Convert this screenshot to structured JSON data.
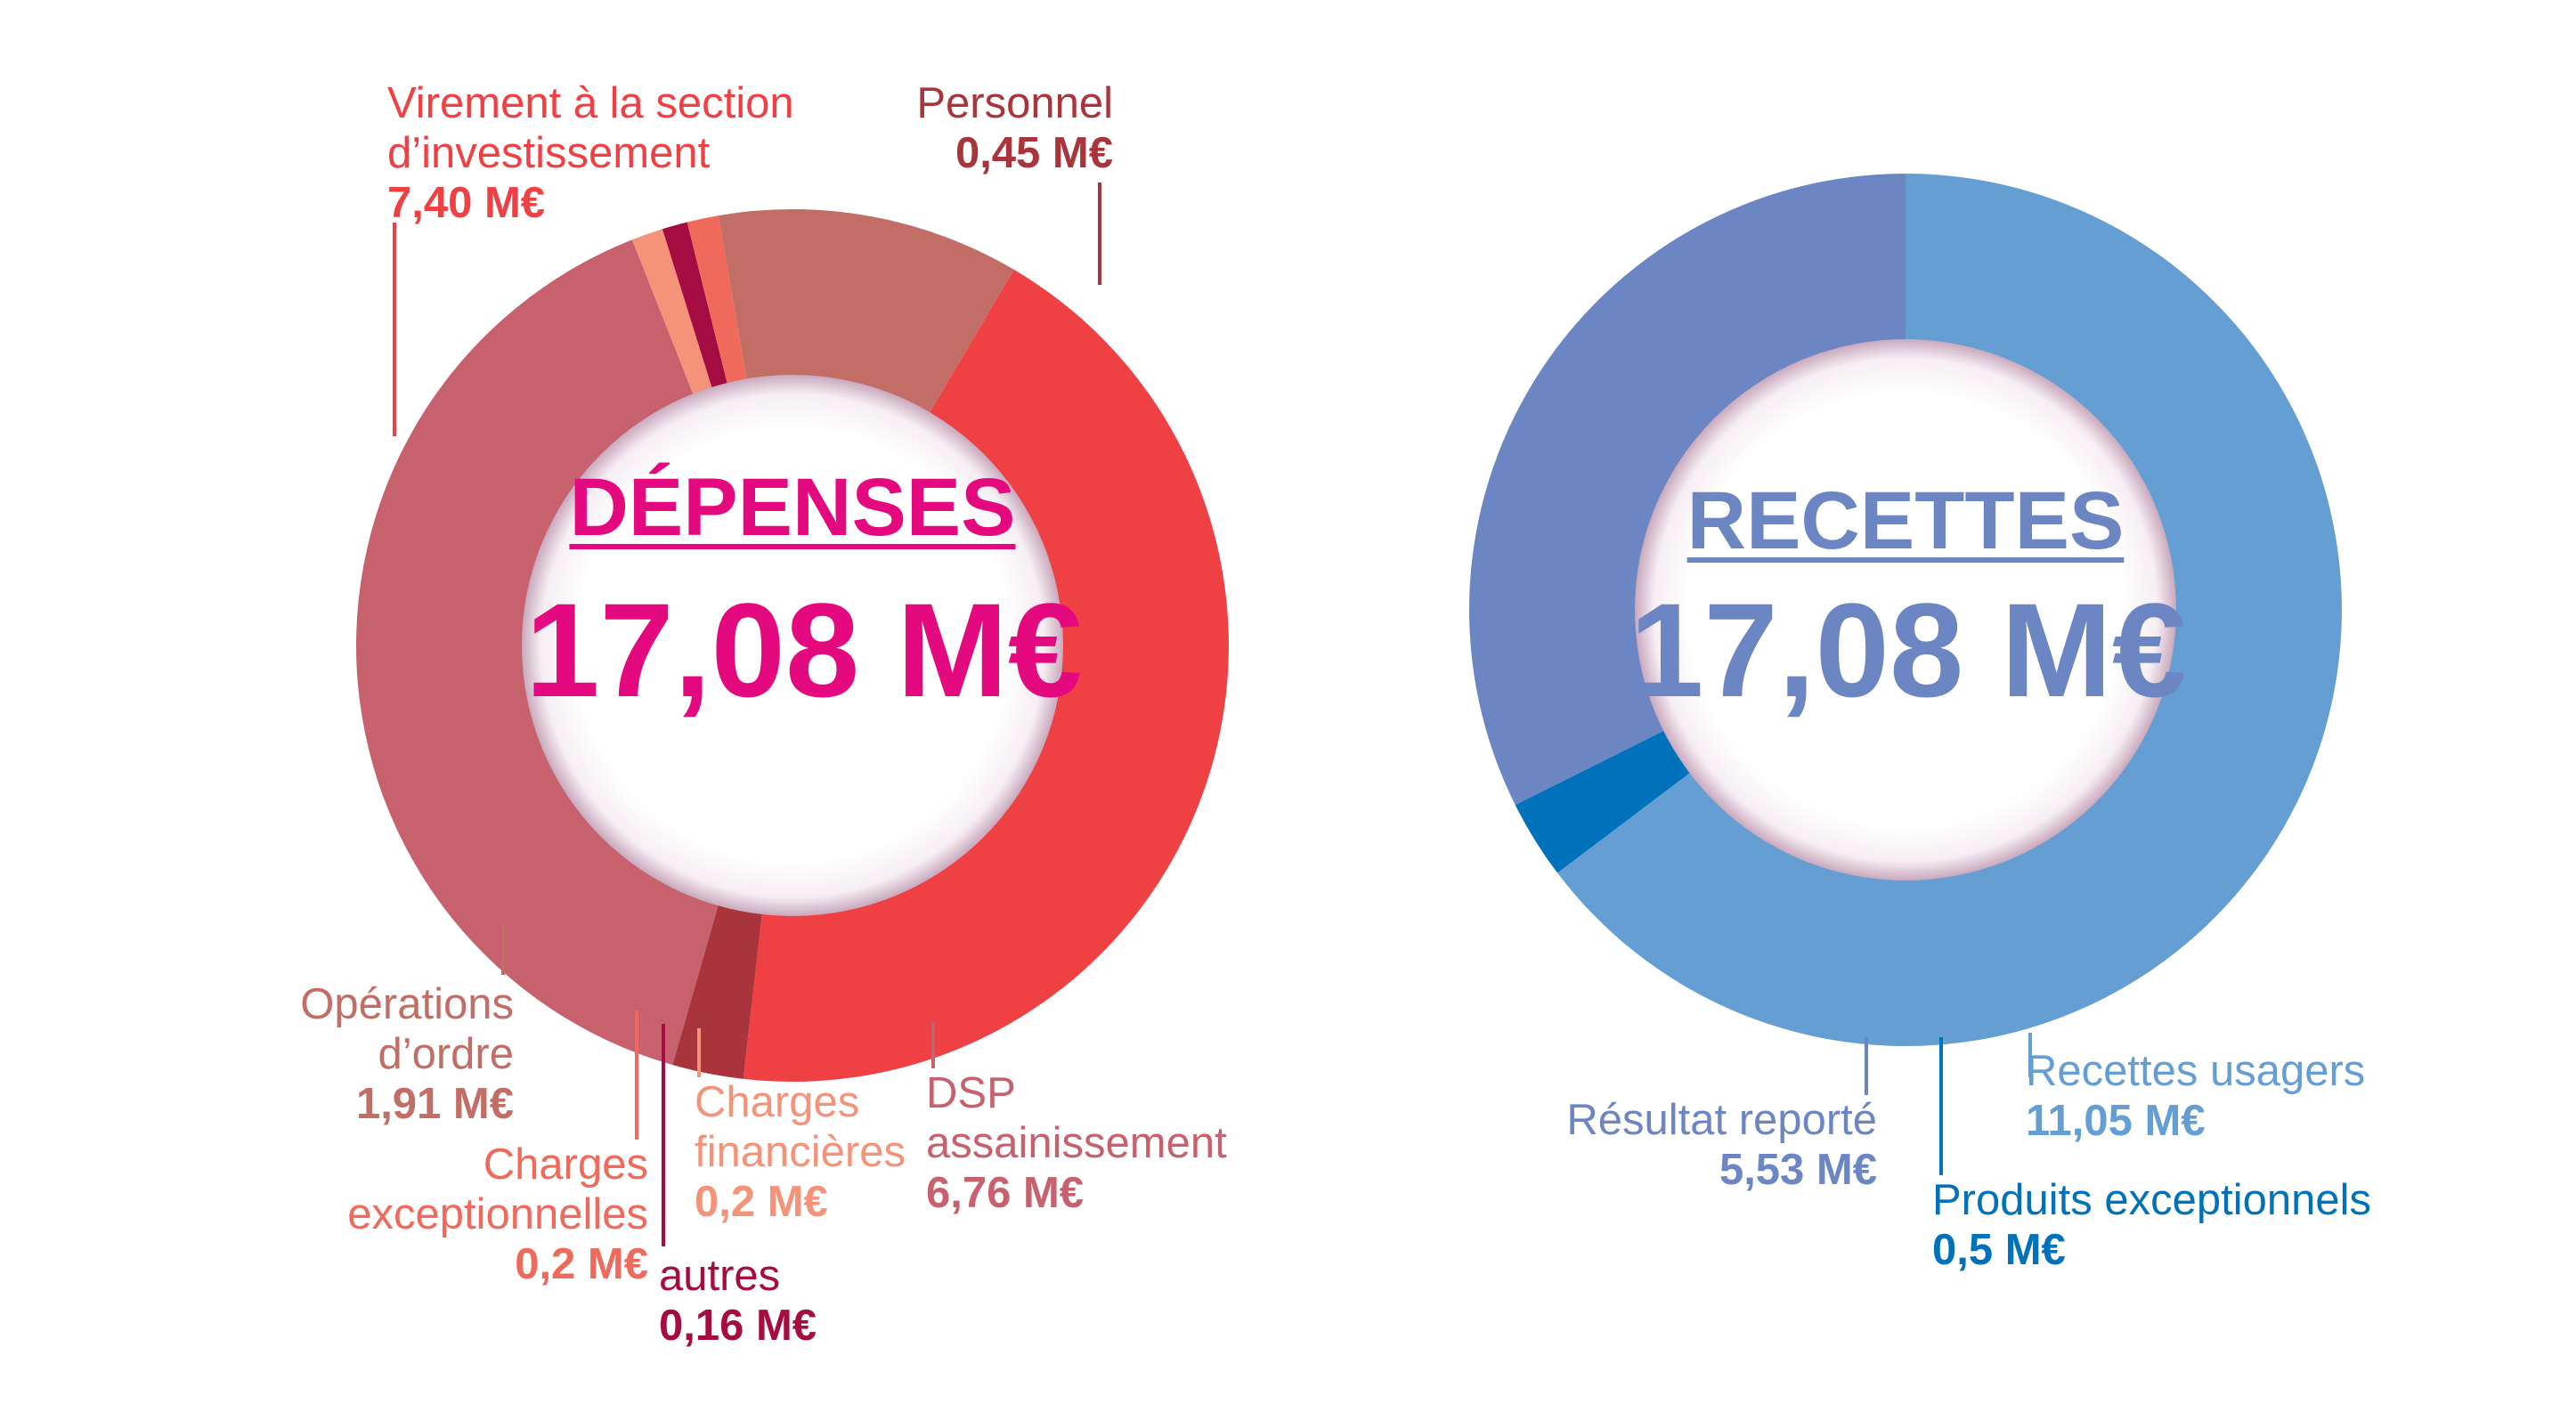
{
  "chart_data": [
    {
      "type": "pie",
      "variant": "donut",
      "title": "DÉPENSES",
      "total": "17,08 M€",
      "title_color": "#e5097f",
      "slices": [
        {
          "name_lines": [
            "Virement à la section",
            "d’investissement"
          ],
          "label": "7,40 M€",
          "value": 7.4,
          "color": "#ef4144"
        },
        {
          "name_lines": [
            "Personnel"
          ],
          "label": "0,45 M€",
          "value": 0.45,
          "color": "#a9343c"
        },
        {
          "name_lines": [
            "DSP",
            "assainissement"
          ],
          "label": "6,76 M€",
          "value": 6.76,
          "color": "#c7616d"
        },
        {
          "name_lines": [
            "Charges",
            "financières"
          ],
          "label": "0,2 M€",
          "value": 0.2,
          "color": "#f5937a"
        },
        {
          "name_lines": [
            "autres"
          ],
          "label": "0,16 M€",
          "value": 0.16,
          "color": "#a50c42"
        },
        {
          "name_lines": [
            "Charges",
            "exceptionnelles"
          ],
          "label": "0,2 M€",
          "value": 0.2,
          "color": "#ef6a5b"
        },
        {
          "name_lines": [
            "Opérations",
            "d’ordre"
          ],
          "label": "1,91 M€",
          "value": 1.91,
          "color": "#c26e66"
        }
      ]
    },
    {
      "type": "pie",
      "variant": "donut",
      "title": "RECETTES",
      "total": "17,08 M€",
      "title_color": "#6b86c2",
      "slices": [
        {
          "name_lines": [
            "Recettes usagers"
          ],
          "label": "11,05 M€",
          "value": 11.05,
          "color": "#649ed3"
        },
        {
          "name_lines": [
            "Produits exceptionnels"
          ],
          "label": "0,5 M€",
          "value": 0.5,
          "color": "#0071bb"
        },
        {
          "name_lines": [
            "Résultat reporté"
          ],
          "label": "5,53 M€",
          "value": 5.53,
          "color": "#6b86c2"
        }
      ]
    }
  ]
}
